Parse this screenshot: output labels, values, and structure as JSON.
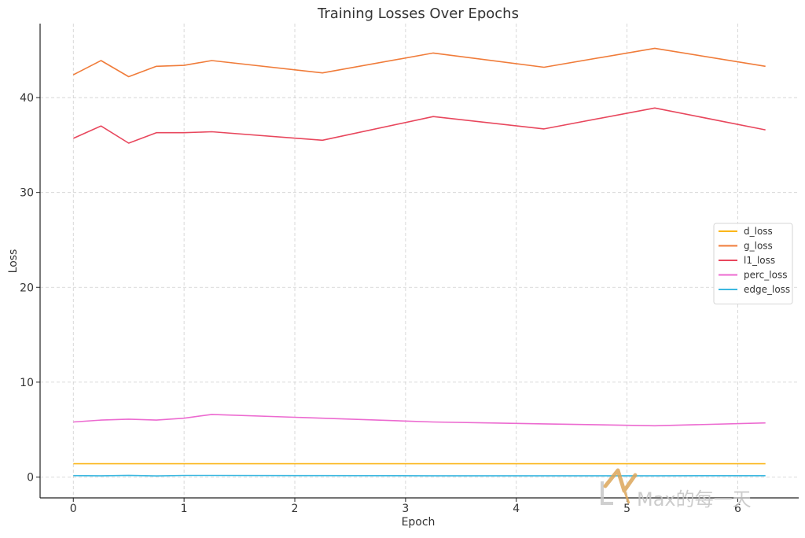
{
  "chart_data": {
    "type": "line",
    "title": "Training Losses Over Epochs",
    "xlabel": "Epoch",
    "ylabel": "Loss",
    "xlim": [
      -0.3,
      6.55
    ],
    "ylim": [
      -2.2,
      47.8
    ],
    "x_ticks": [
      0,
      1,
      2,
      3,
      4,
      5,
      6
    ],
    "y_ticks": [
      0,
      10,
      20,
      30,
      40
    ],
    "grid": true,
    "legend_position": "center-right",
    "x": [
      0,
      0.25,
      0.5,
      0.75,
      1.0,
      1.25,
      2.25,
      3.25,
      4.25,
      5.25,
      6.25
    ],
    "series": [
      {
        "name": "d_loss",
        "color": "#fbb61a",
        "values": [
          1.4,
          1.4,
          1.4,
          1.4,
          1.4,
          1.4,
          1.4,
          1.4,
          1.4,
          1.4,
          1.4
        ]
      },
      {
        "name": "g_loss",
        "color": "#f07c3a",
        "values": [
          42.4,
          43.9,
          42.2,
          43.3,
          43.4,
          43.9,
          42.6,
          44.7,
          43.2,
          45.2,
          43.3
        ]
      },
      {
        "name": "l1_loss",
        "color": "#e8475d",
        "values": [
          35.7,
          37.0,
          35.2,
          36.3,
          36.3,
          36.4,
          35.5,
          38.0,
          36.7,
          38.9,
          36.6
        ]
      },
      {
        "name": "perc_loss",
        "color": "#ec6ad0",
        "values": [
          5.8,
          6.0,
          6.1,
          6.0,
          6.2,
          6.6,
          6.2,
          5.8,
          5.6,
          5.4,
          5.7
        ]
      },
      {
        "name": "edge_loss",
        "color": "#3cb8e0",
        "values": [
          0.15,
          0.13,
          0.17,
          0.11,
          0.16,
          0.16,
          0.15,
          0.13,
          0.13,
          0.13,
          0.14
        ]
      }
    ]
  },
  "watermark": {
    "text": "Max的每一天",
    "color": "#c4c4c4",
    "logo_color": "#dca65a"
  }
}
